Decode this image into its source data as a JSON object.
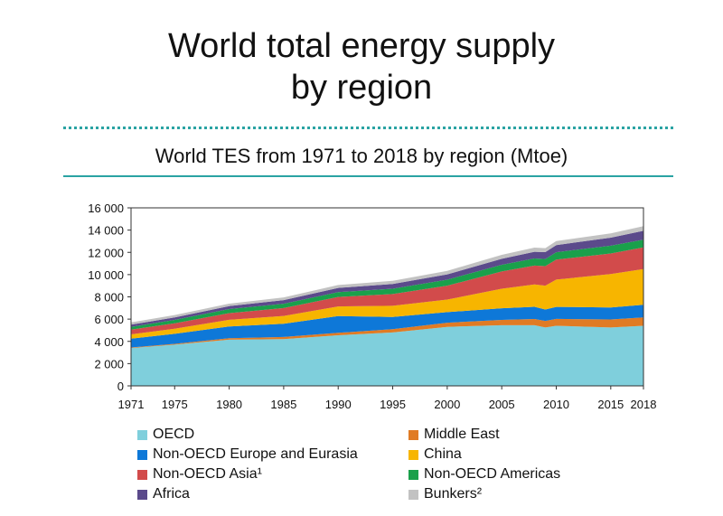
{
  "title": {
    "line1": "World total energy supply",
    "line2": "by region"
  },
  "chart_data": {
    "type": "area",
    "title": "World TES from 1971 to 2018 by region (Mtoe)",
    "stacked": true,
    "ylim": [
      0,
      16000
    ],
    "yticks": [
      "0",
      "2 000",
      "4 000",
      "6 000",
      "8 000",
      "10 000",
      "12 000",
      "14 000",
      "16 000"
    ],
    "xticks": [
      "1971",
      "1975",
      "1980",
      "1985",
      "1990",
      "1995",
      "2000",
      "2005",
      "2010",
      "2015",
      "2018"
    ],
    "x": [
      1971,
      1975,
      1980,
      1985,
      1990,
      1995,
      2000,
      2005,
      2008,
      2009,
      2010,
      2015,
      2018
    ],
    "series": [
      {
        "name": "OECD",
        "color": "#7fcfdc",
        "values": [
          3400,
          3700,
          4150,
          4200,
          4550,
          4800,
          5300,
          5450,
          5450,
          5250,
          5400,
          5250,
          5400
        ]
      },
      {
        "name": "Middle East",
        "color": "#e07b24",
        "values": [
          50,
          80,
          140,
          190,
          220,
          300,
          380,
          480,
          560,
          590,
          620,
          720,
          760
        ]
      },
      {
        "name": "Non-OECD Europe and Eurasia",
        "color": "#0e78d8",
        "values": [
          800,
          900,
          1050,
          1200,
          1500,
          1100,
          950,
          1050,
          1100,
          1020,
          1080,
          1080,
          1130
        ]
      },
      {
        "name": "China",
        "color": "#f7b500",
        "values": [
          380,
          450,
          600,
          700,
          870,
          1000,
          1130,
          1750,
          2000,
          2150,
          2450,
          3000,
          3200
        ]
      },
      {
        "name": "Non-OECD Asia¹",
        "color": "#d24b4b",
        "values": [
          420,
          500,
          600,
          700,
          850,
          1050,
          1250,
          1550,
          1700,
          1750,
          1800,
          1850,
          1950
        ]
      },
      {
        "name": "Non-OECD Americas",
        "color": "#1aa04b",
        "values": [
          250,
          300,
          360,
          390,
          430,
          480,
          530,
          600,
          640,
          640,
          660,
          700,
          700
        ]
      },
      {
        "name": "Africa",
        "color": "#5b4a8b",
        "values": [
          200,
          230,
          270,
          330,
          380,
          430,
          480,
          540,
          600,
          620,
          640,
          720,
          800
        ]
      },
      {
        "name": "Bunkers²",
        "color": "#c2c2c2",
        "values": [
          200,
          210,
          220,
          240,
          260,
          280,
          320,
          360,
          380,
          360,
          370,
          380,
          420
        ]
      }
    ],
    "legend": {
      "left": [
        "OECD",
        "Non-OECD Europe and Eurasia",
        "Non-OECD Asia¹",
        "Africa"
      ],
      "right": [
        "Middle East",
        "China",
        "Non-OECD Americas",
        "Bunkers²"
      ]
    },
    "grid": false,
    "legend_position": "bottom"
  }
}
